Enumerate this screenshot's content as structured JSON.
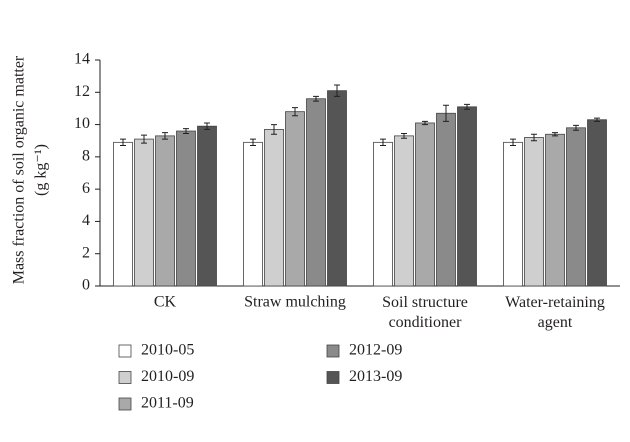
{
  "chart_data": {
    "type": "bar",
    "ylabel": "Mass fraction of soil organic matter",
    "ylabel_unit": "(g kg⁻¹)",
    "categories": [
      "CK",
      "Straw mulching",
      "Soil structure\nconditioner",
      "Water-retaining\nagent"
    ],
    "series": [
      {
        "name": "2010-05",
        "color": "#ffffff",
        "values": [
          8.9,
          8.9,
          8.9,
          8.9
        ],
        "errors": [
          0.2,
          0.2,
          0.2,
          0.2
        ]
      },
      {
        "name": "2010-09",
        "color": "#cfcfcf",
        "values": [
          9.1,
          9.7,
          9.3,
          9.2
        ],
        "errors": [
          0.25,
          0.3,
          0.15,
          0.2
        ]
      },
      {
        "name": "2011-09",
        "color": "#a9a9a9",
        "values": [
          9.3,
          10.8,
          10.1,
          9.4
        ],
        "errors": [
          0.2,
          0.25,
          0.1,
          0.1
        ]
      },
      {
        "name": "2012-09",
        "color": "#8a8a8a",
        "values": [
          9.6,
          11.6,
          10.7,
          9.8
        ],
        "errors": [
          0.15,
          0.15,
          0.5,
          0.15
        ]
      },
      {
        "name": "2013-09",
        "color": "#555555",
        "values": [
          9.9,
          12.1,
          11.1,
          10.3
        ],
        "errors": [
          0.2,
          0.35,
          0.15,
          0.1
        ]
      }
    ],
    "ylim": [
      0,
      14
    ],
    "yticks": [
      0,
      2,
      4,
      6,
      8,
      10,
      12,
      14
    ],
    "grid": false
  }
}
